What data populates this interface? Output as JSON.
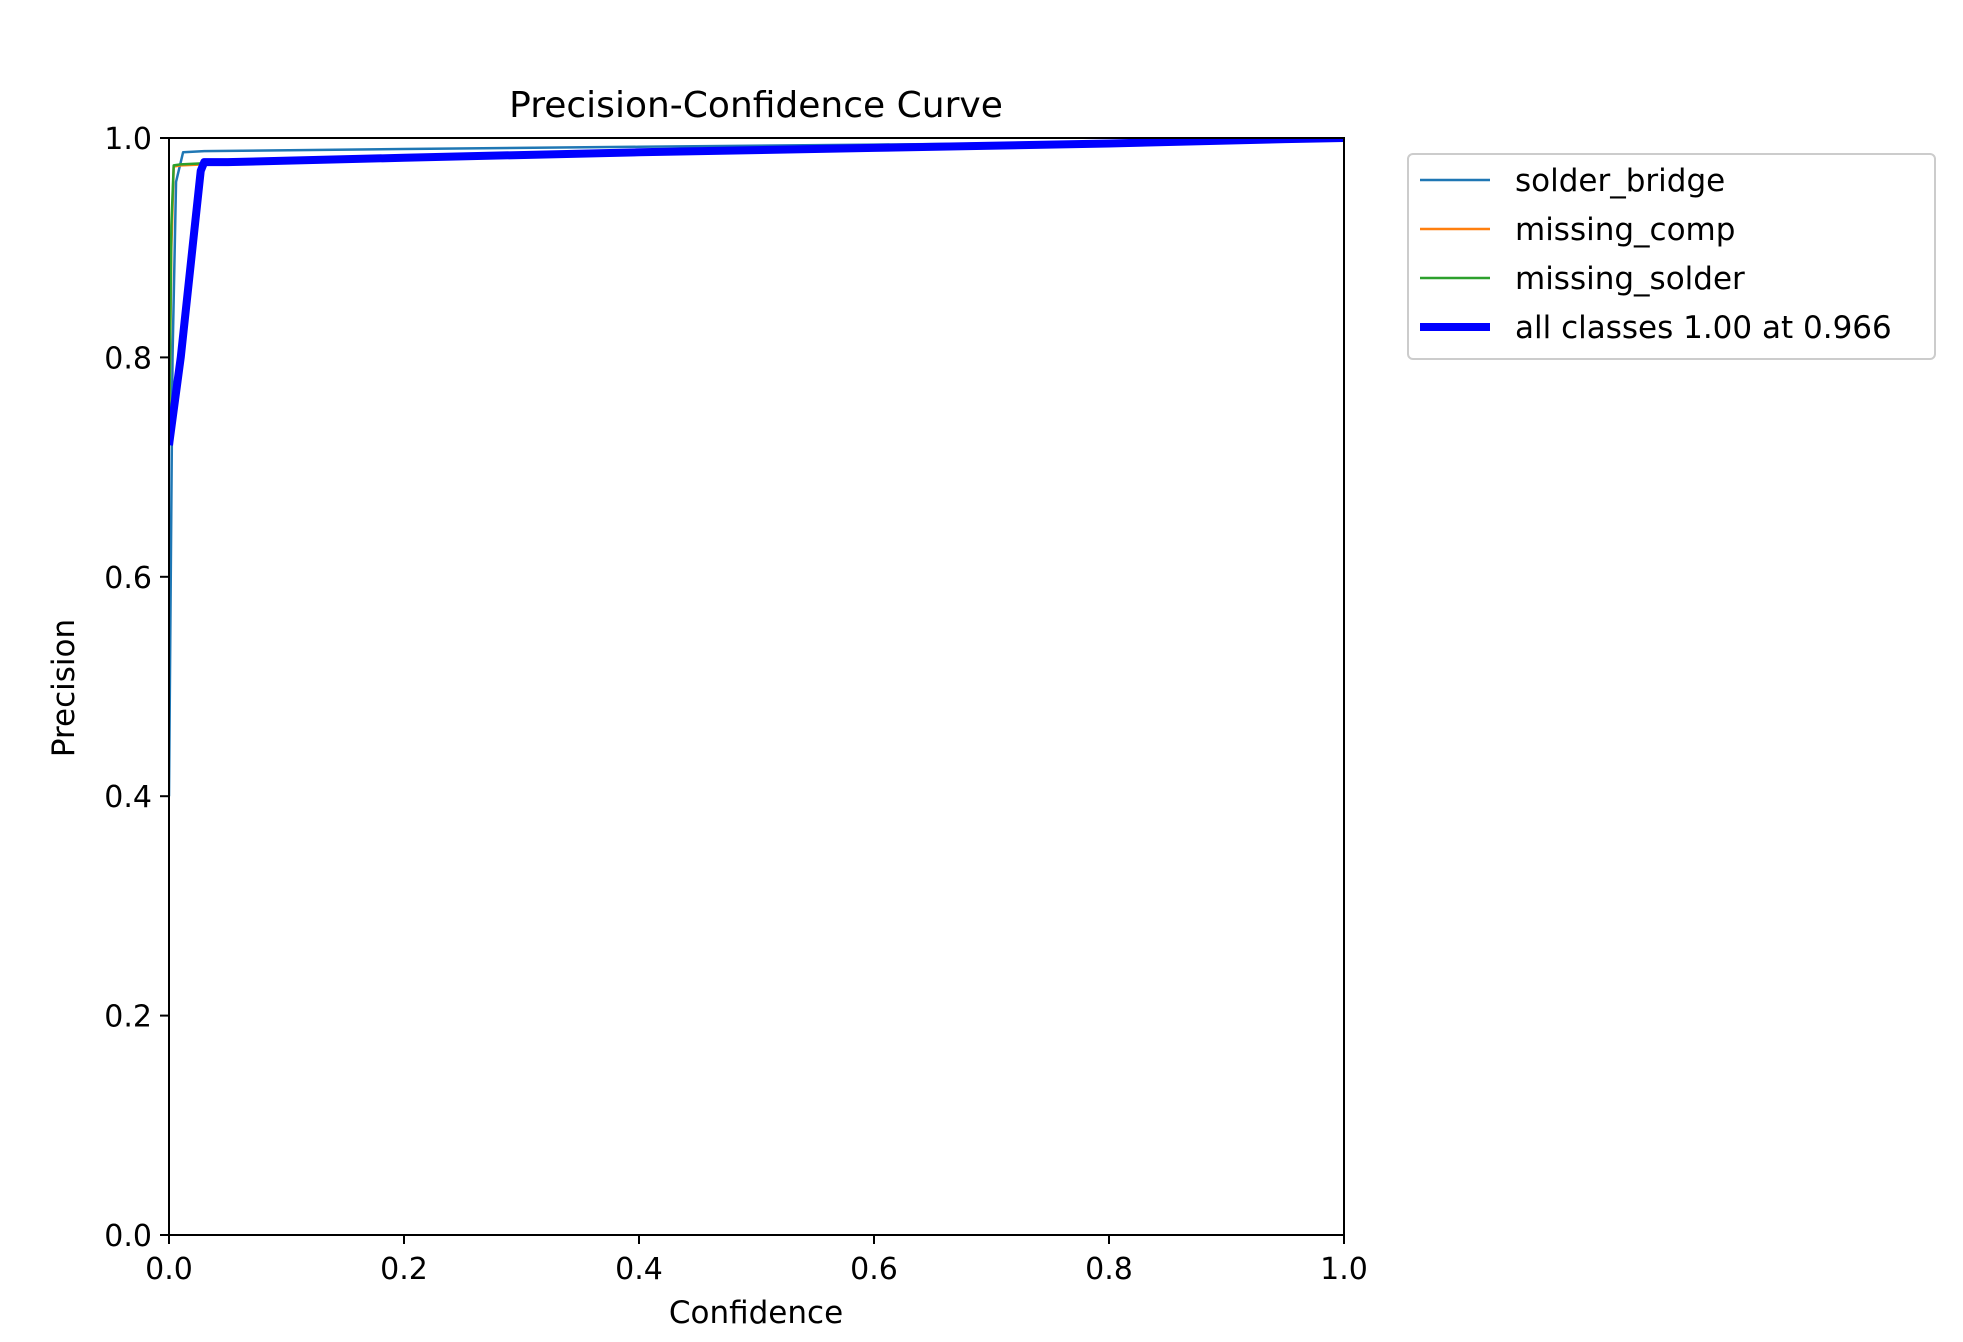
{
  "chart_data": {
    "type": "line",
    "title": "Precision-Confidence Curve",
    "xlabel": "Confidence",
    "ylabel": "Precision",
    "xlim": [
      0,
      1
    ],
    "ylim": [
      0,
      1
    ],
    "xticks": [
      "0.0",
      "0.2",
      "0.4",
      "0.6",
      "0.8",
      "1.0"
    ],
    "yticks": [
      "0.0",
      "0.2",
      "0.4",
      "0.6",
      "0.8",
      "1.0"
    ],
    "grid": false,
    "legend_position": "outside-right-top",
    "series": [
      {
        "name": "solder_bridge",
        "color": "#1f77b4",
        "x": [
          0.0,
          0.003,
          0.006,
          0.012,
          0.03,
          0.2,
          0.4,
          0.6,
          0.8,
          0.95,
          1.0
        ],
        "y": [
          0.4,
          0.8,
          0.96,
          0.987,
          0.988,
          0.99,
          0.992,
          0.994,
          0.996,
          0.999,
          1.0
        ]
      },
      {
        "name": "missing_comp",
        "color": "#ff7f0e",
        "x": [
          0.0,
          0.002,
          0.004,
          0.01,
          0.03,
          0.2,
          0.4,
          0.6,
          0.8,
          0.95,
          1.0
        ],
        "y": [
          0.72,
          0.9,
          0.974,
          0.975,
          0.976,
          0.981,
          0.986,
          0.99,
          0.995,
          0.999,
          1.0
        ]
      },
      {
        "name": "missing_solder",
        "color": "#2ca02c",
        "x": [
          0.0,
          0.002,
          0.004,
          0.01,
          0.03,
          0.2,
          0.4,
          0.6,
          0.8,
          0.95,
          1.0
        ],
        "y": [
          0.72,
          0.92,
          0.975,
          0.976,
          0.977,
          0.982,
          0.987,
          0.991,
          0.995,
          0.999,
          1.0
        ]
      },
      {
        "name": "all classes 1.00 at 0.966",
        "color": "#0000ff",
        "bold": true,
        "x": [
          0.0,
          0.01,
          0.02,
          0.027,
          0.03,
          0.05,
          0.2,
          0.4,
          0.6,
          0.8,
          0.95,
          1.0
        ],
        "y": [
          0.72,
          0.8,
          0.9,
          0.97,
          0.978,
          0.978,
          0.982,
          0.987,
          0.991,
          0.995,
          0.999,
          1.0
        ]
      }
    ]
  }
}
